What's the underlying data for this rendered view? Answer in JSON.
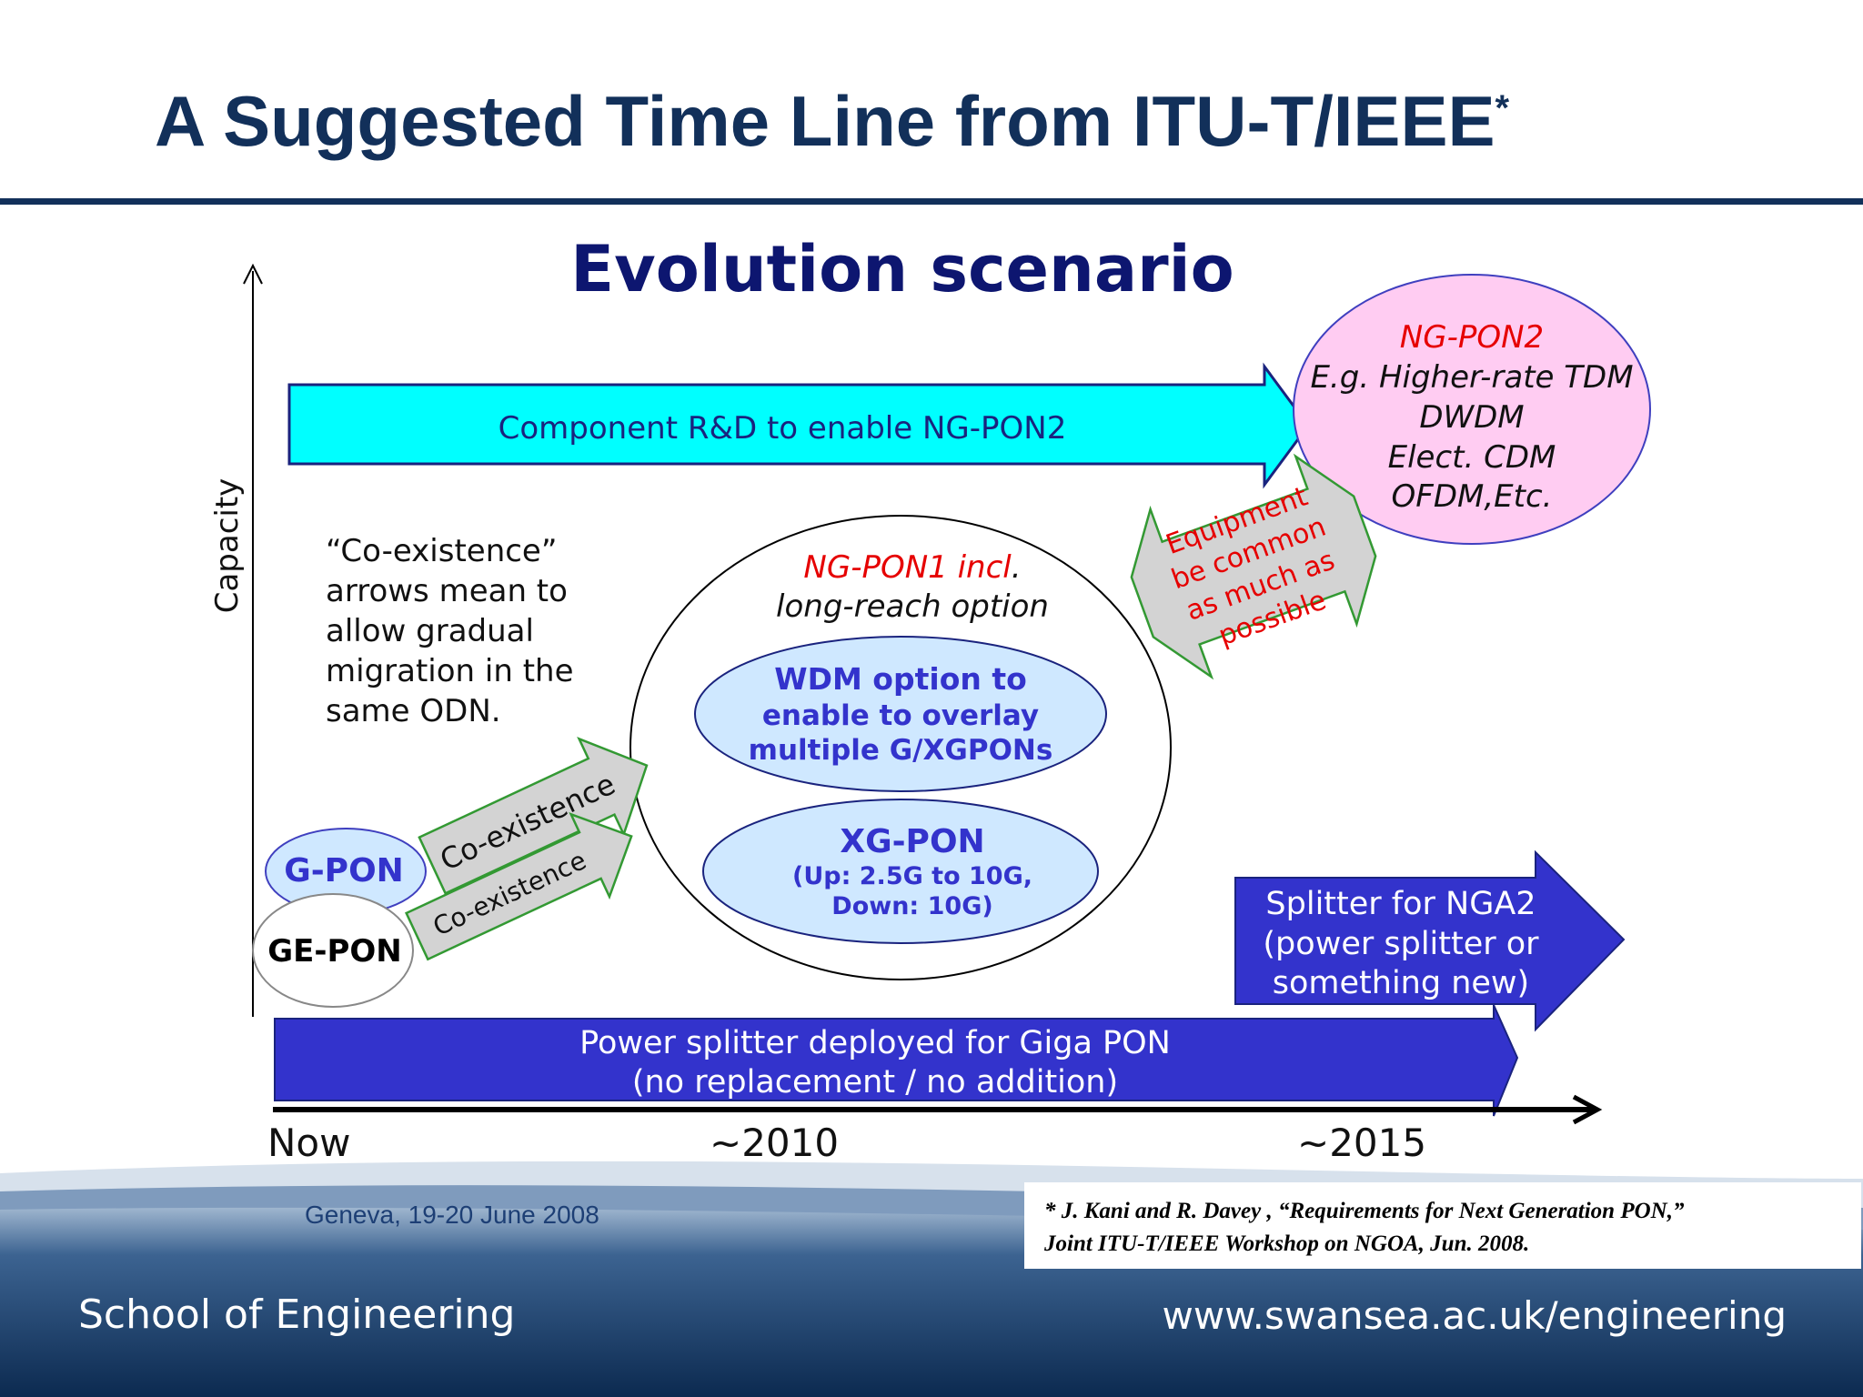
{
  "slide": {
    "title": "A Suggested Time Line from ITU-T/IEEE",
    "title_marker": "*",
    "subtitle": "Evolution scenario"
  },
  "diagram": {
    "y_axis_label": "Capacity",
    "timeline": [
      "Now",
      "~2010",
      "~2015"
    ],
    "note_lines": [
      "“Co-existence”",
      "arrows mean to",
      "allow gradual",
      "migration in the",
      "same ODN."
    ],
    "component_rd_label": "Component R&D to enable NG-PON2",
    "ngpon2": {
      "title": "NG-PON2",
      "lines": [
        "E.g. Higher-rate TDM",
        "DWDM",
        "Elect. CDM",
        "OFDM,Etc."
      ]
    },
    "equipment_lines": [
      "Equipment",
      "be common",
      "as much as",
      "possible"
    ],
    "ngpon1": {
      "title": "NG-PON1 incl",
      "title_dot": ".",
      "subtitle": "long-reach option"
    },
    "wdm_lines": [
      "WDM option to",
      "enable to overlay",
      "multiple G/XGPONs"
    ],
    "xgpon": {
      "title": "XG-PON",
      "lines": [
        "(Up: 2.5G to 10G,",
        "Down: 10G)"
      ]
    },
    "gpon_label": "G-PON",
    "gepon_label": "GE-PON",
    "coexistence_label": "Co-existence",
    "splitter_nga2_lines": [
      "Splitter for NGA2",
      "(power splitter or",
      "something new)"
    ],
    "power_splitter_lines": [
      "Power splitter deployed for Giga PON",
      "(no replacement / no addition)"
    ]
  },
  "footer": {
    "event": "Geneva, 19-20 June 2008",
    "reference_lines": [
      "* J. Kani and R. Davey , “Requirements for Next Generation PON,”",
      "Joint ITU-T/IEEE Workshop on NGOA, Jun. 2008."
    ],
    "school": "School of Engineering",
    "url": "www.swansea.ac.uk/engineering"
  },
  "colors": {
    "title_navy": "#12305a",
    "subtitle_navy": "#0d1670",
    "cyan_arrow": "#00ffff",
    "blue_arrow": "#3333cc",
    "pink_ellipse": "#ffccf2",
    "light_blue_ellipse": "#cfe8ff",
    "grey_arrow": "#d3d3d3",
    "green_border": "#339933",
    "red_text": "#e60000",
    "footer_navy": "#0c2a50"
  }
}
